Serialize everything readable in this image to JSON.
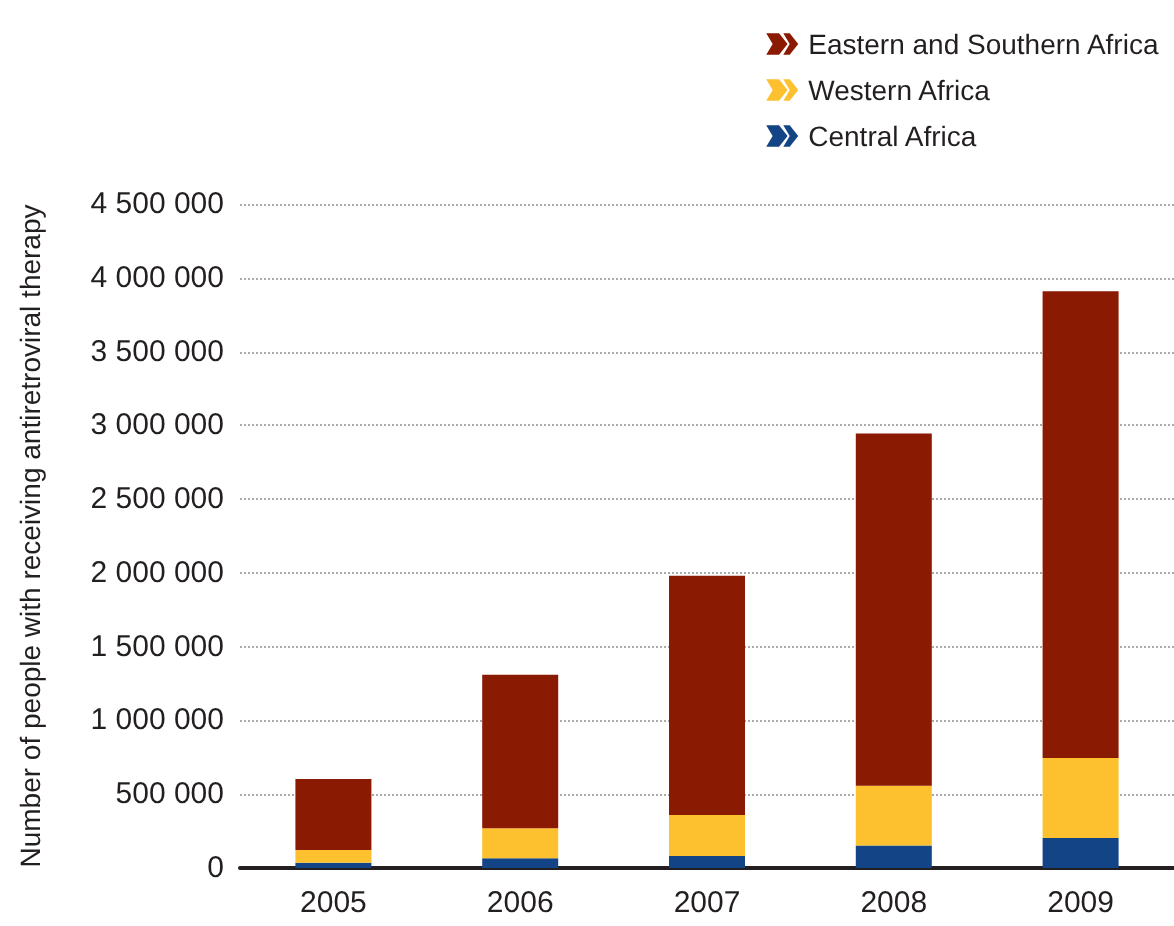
{
  "chart_data": {
    "type": "bar",
    "stacked": true,
    "ylabel": "Number of people with receiving antiretroviral therapy",
    "categories": [
      "2005",
      "2006",
      "2007",
      "2008",
      "2009"
    ],
    "series": [
      {
        "name": "Central Africa",
        "color": "#134586",
        "values": [
          35000,
          66000,
          81000,
          152000,
          203000
        ]
      },
      {
        "name": "Western Africa",
        "color": "#fdc130",
        "values": [
          87000,
          203000,
          279000,
          406000,
          543000
        ]
      },
      {
        "name": "Eastern and Southern Africa",
        "color": "#8b1a03",
        "values": [
          482000,
          1041000,
          1620000,
          2386000,
          3163000
        ]
      }
    ],
    "ylim": [
      0,
      4500000
    ],
    "yticks": [
      0,
      500000,
      1000000,
      1500000,
      2000000,
      2500000,
      3000000,
      3500000,
      4000000,
      4500000
    ],
    "grid": "y",
    "legend": "top right"
  }
}
